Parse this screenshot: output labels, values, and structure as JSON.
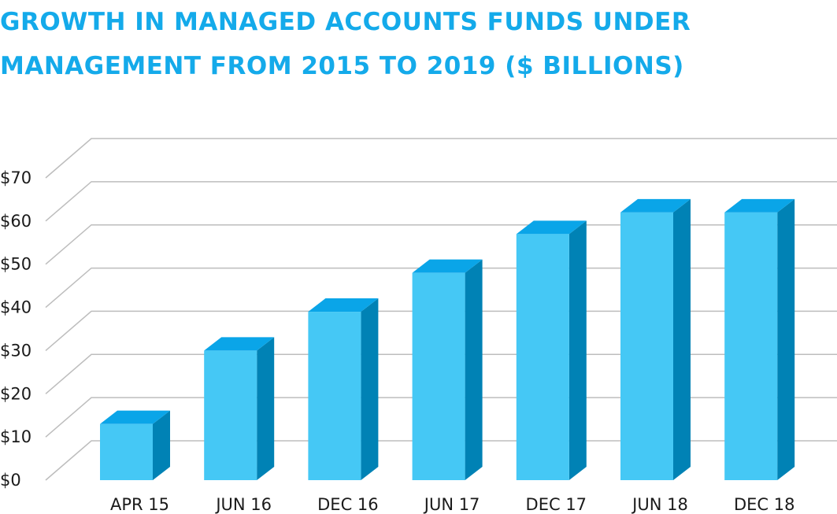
{
  "title_lines": [
    "GROWTH IN MANAGED ACCOUNTS FUNDS UNDER",
    "MANAGEMENT FROM 2015 TO 2019 ($ BILLIONS)"
  ],
  "colors": {
    "title": "#14aaea",
    "bar_front": "#45c8f5",
    "bar_top": "#0aa5e8",
    "bar_side": "#0082b5",
    "grid": "#bdbdbd"
  },
  "chart_data": {
    "type": "bar",
    "title": "GROWTH IN MANAGED ACCOUNTS FUNDS UNDER MANAGEMENT FROM 2015 TO 2019 ($ BILLIONS)",
    "categories": [
      "APR 15",
      "JUN 16",
      "DEC 16",
      "JUN 17",
      "DEC 17",
      "JUN 18",
      "DEC 18"
    ],
    "values": [
      13,
      30,
      39,
      48,
      57,
      62,
      62
    ],
    "y_ticks": [
      "$0",
      "$10",
      "$20",
      "$30",
      "$40",
      "$50",
      "$60",
      "$70"
    ],
    "ylim": [
      0,
      70
    ],
    "xlabel": "",
    "ylabel": "",
    "grid": true,
    "style": "3d-column"
  }
}
